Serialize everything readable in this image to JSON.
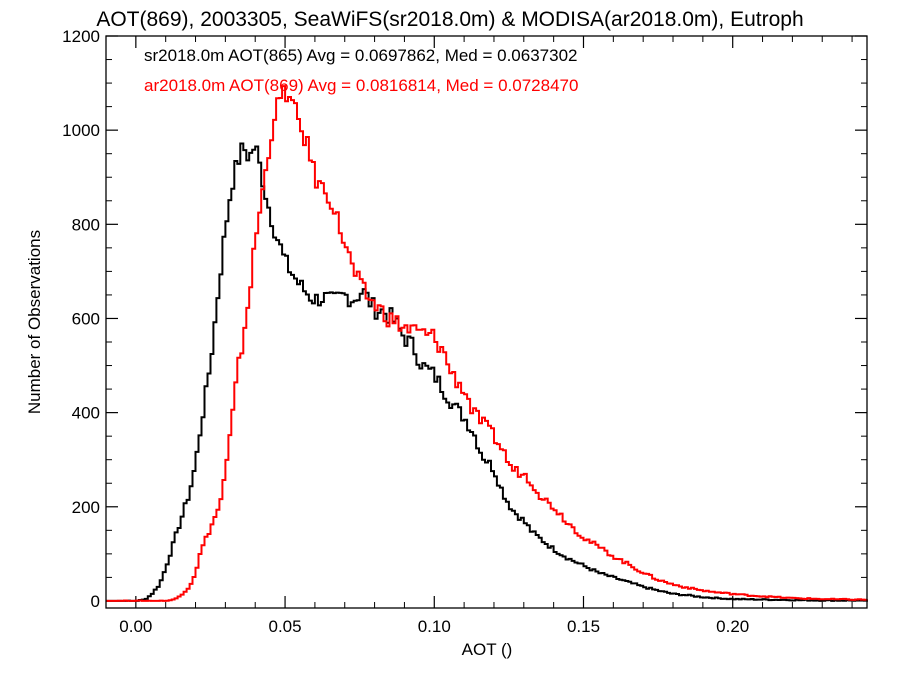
{
  "chart_data": {
    "type": "line",
    "title": "AOT(869), 2003305, SeaWiFS(sr2018.0m) & MODISA(ar2018.0m), Eutroph",
    "xlabel": "AOT ()",
    "ylabel": "Number of Observations",
    "xlim": [
      -0.01,
      0.245
    ],
    "ylim": [
      -15,
      1200
    ],
    "xticks": [
      0.0,
      0.05,
      0.1,
      0.15,
      0.2
    ],
    "xtick_labels": [
      "0.00",
      "0.05",
      "0.10",
      "0.15",
      "0.20"
    ],
    "yticks": [
      0,
      200,
      400,
      600,
      800,
      1000,
      1200
    ],
    "ytick_labels": [
      "0",
      "200",
      "400",
      "600",
      "800",
      "1000",
      "1200"
    ],
    "grid": false,
    "series": [
      {
        "name": "sr2018.0m AOT(865) Avg = 0.0697862, Med = 0.0637302",
        "color": "#000000",
        "points": [
          [
            -0.01,
            0
          ],
          [
            0.0,
            0
          ],
          [
            0.003,
            3
          ],
          [
            0.005,
            12
          ],
          [
            0.008,
            35
          ],
          [
            0.01,
            70
          ],
          [
            0.013,
            130
          ],
          [
            0.015,
            170
          ],
          [
            0.018,
            230
          ],
          [
            0.02,
            290
          ],
          [
            0.022,
            380
          ],
          [
            0.024,
            460
          ],
          [
            0.026,
            560
          ],
          [
            0.028,
            680
          ],
          [
            0.03,
            790
          ],
          [
            0.032,
            880
          ],
          [
            0.034,
            930
          ],
          [
            0.036,
            965
          ],
          [
            0.038,
            940
          ],
          [
            0.04,
            970
          ],
          [
            0.042,
            910
          ],
          [
            0.044,
            850
          ],
          [
            0.046,
            800
          ],
          [
            0.048,
            760
          ],
          [
            0.05,
            720
          ],
          [
            0.052,
            700
          ],
          [
            0.055,
            670
          ],
          [
            0.058,
            650
          ],
          [
            0.06,
            640
          ],
          [
            0.063,
            645
          ],
          [
            0.066,
            635
          ],
          [
            0.07,
            650
          ],
          [
            0.073,
            640
          ],
          [
            0.076,
            660
          ],
          [
            0.08,
            620
          ],
          [
            0.083,
            615
          ],
          [
            0.086,
            600
          ],
          [
            0.09,
            560
          ],
          [
            0.093,
            540
          ],
          [
            0.096,
            500
          ],
          [
            0.1,
            480
          ],
          [
            0.103,
            450
          ],
          [
            0.106,
            420
          ],
          [
            0.11,
            390
          ],
          [
            0.113,
            360
          ],
          [
            0.116,
            310
          ],
          [
            0.12,
            280
          ],
          [
            0.123,
            230
          ],
          [
            0.126,
            195
          ],
          [
            0.13,
            170
          ],
          [
            0.133,
            145
          ],
          [
            0.136,
            130
          ],
          [
            0.14,
            110
          ],
          [
            0.145,
            90
          ],
          [
            0.15,
            75
          ],
          [
            0.155,
            60
          ],
          [
            0.16,
            50
          ],
          [
            0.165,
            40
          ],
          [
            0.17,
            30
          ],
          [
            0.175,
            22
          ],
          [
            0.18,
            15
          ],
          [
            0.185,
            12
          ],
          [
            0.19,
            8
          ],
          [
            0.195,
            6
          ],
          [
            0.2,
            4
          ],
          [
            0.21,
            3
          ],
          [
            0.22,
            2
          ],
          [
            0.23,
            1
          ],
          [
            0.245,
            1
          ]
        ]
      },
      {
        "name": "ar2018.0m AOT(869) Avg = 0.0816814, Med = 0.0728470",
        "color": "#ff0000",
        "points": [
          [
            -0.01,
            0
          ],
          [
            0.01,
            0
          ],
          [
            0.013,
            3
          ],
          [
            0.015,
            12
          ],
          [
            0.018,
            30
          ],
          [
            0.02,
            60
          ],
          [
            0.022,
            110
          ],
          [
            0.024,
            140
          ],
          [
            0.026,
            170
          ],
          [
            0.028,
            200
          ],
          [
            0.03,
            270
          ],
          [
            0.032,
            370
          ],
          [
            0.034,
            480
          ],
          [
            0.036,
            560
          ],
          [
            0.038,
            650
          ],
          [
            0.04,
            760
          ],
          [
            0.042,
            850
          ],
          [
            0.044,
            930
          ],
          [
            0.046,
            1020
          ],
          [
            0.048,
            1060
          ],
          [
            0.05,
            1085
          ],
          [
            0.052,
            1060
          ],
          [
            0.054,
            1030
          ],
          [
            0.056,
            990
          ],
          [
            0.058,
            960
          ],
          [
            0.06,
            900
          ],
          [
            0.062,
            880
          ],
          [
            0.065,
            860
          ],
          [
            0.068,
            800
          ],
          [
            0.07,
            760
          ],
          [
            0.073,
            700
          ],
          [
            0.076,
            660
          ],
          [
            0.08,
            630
          ],
          [
            0.085,
            600
          ],
          [
            0.09,
            580
          ],
          [
            0.095,
            570
          ],
          [
            0.1,
            560
          ],
          [
            0.103,
            530
          ],
          [
            0.106,
            480
          ],
          [
            0.11,
            450
          ],
          [
            0.113,
            400
          ],
          [
            0.116,
            380
          ],
          [
            0.12,
            350
          ],
          [
            0.123,
            320
          ],
          [
            0.126,
            280
          ],
          [
            0.13,
            270
          ],
          [
            0.133,
            250
          ],
          [
            0.136,
            220
          ],
          [
            0.14,
            200
          ],
          [
            0.145,
            165
          ],
          [
            0.15,
            135
          ],
          [
            0.155,
            115
          ],
          [
            0.16,
            95
          ],
          [
            0.165,
            78
          ],
          [
            0.17,
            60
          ],
          [
            0.175,
            45
          ],
          [
            0.18,
            35
          ],
          [
            0.185,
            28
          ],
          [
            0.19,
            22
          ],
          [
            0.195,
            18
          ],
          [
            0.2,
            15
          ],
          [
            0.205,
            12
          ],
          [
            0.21,
            10
          ],
          [
            0.215,
            8
          ],
          [
            0.22,
            6
          ],
          [
            0.225,
            5
          ],
          [
            0.23,
            4
          ],
          [
            0.24,
            3
          ],
          [
            0.245,
            3
          ]
        ]
      }
    ]
  }
}
